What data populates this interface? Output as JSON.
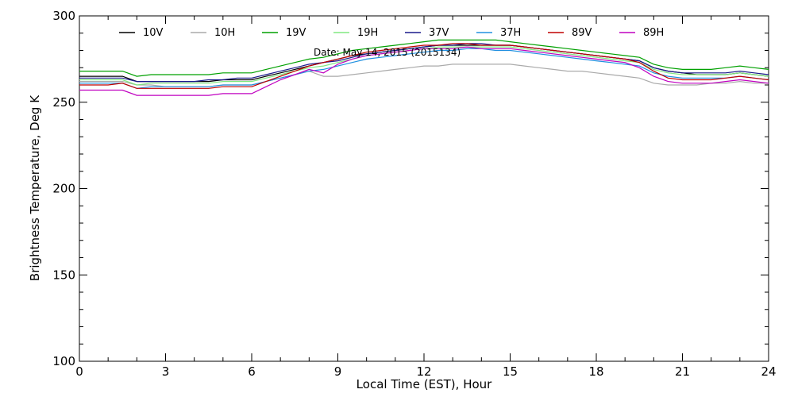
{
  "chart_data": {
    "type": "line",
    "title": "",
    "annotation": "Date: May 14, 2015 (2015134)",
    "xlabel": "Local Time (EST), Hour",
    "ylabel": "Brightness Temperature, Deg K",
    "xlim": [
      0,
      24
    ],
    "ylim": [
      100,
      300
    ],
    "xticks": [
      0,
      3,
      6,
      9,
      12,
      15,
      18,
      21,
      24
    ],
    "yticks": [
      100,
      150,
      200,
      250,
      300
    ],
    "grid": false,
    "legend_placement": "top",
    "x": [
      0,
      0.5,
      1,
      1.5,
      2,
      2.5,
      3,
      3.5,
      4,
      4.5,
      5,
      5.5,
      6,
      6.5,
      7,
      7.5,
      8,
      8.5,
      9,
      9.5,
      10,
      10.5,
      11,
      11.5,
      12,
      12.5,
      13,
      13.5,
      14,
      14.5,
      15,
      15.5,
      16,
      16.5,
      17,
      17.5,
      18,
      18.5,
      19,
      19.5,
      20,
      20.5,
      21,
      21.5,
      22,
      22.5,
      23,
      23.5,
      24
    ],
    "series": [
      {
        "name": "10V",
        "color": "#000000",
        "values": [
          265,
          265,
          265,
          265,
          262,
          262,
          262,
          262,
          262,
          262,
          263,
          263,
          263,
          265,
          267,
          269,
          271,
          273,
          275,
          277,
          278,
          279,
          280,
          281,
          282,
          283,
          283,
          283,
          283,
          283,
          283,
          282,
          281,
          280,
          279,
          278,
          277,
          276,
          275,
          274,
          270,
          268,
          267,
          266,
          266,
          266,
          267,
          266,
          265
        ]
      },
      {
        "name": "10H",
        "color": "#aaaaaa",
        "values": [
          262,
          262,
          262,
          262,
          260,
          260,
          259,
          259,
          259,
          259,
          260,
          260,
          260,
          262,
          264,
          266,
          268,
          265,
          265,
          266,
          267,
          268,
          269,
          270,
          271,
          271,
          272,
          272,
          272,
          272,
          272,
          271,
          270,
          269,
          268,
          268,
          267,
          266,
          265,
          264,
          261,
          260,
          260,
          260,
          261,
          261,
          262,
          261,
          261
        ]
      },
      {
        "name": "19V",
        "color": "#00a000",
        "values": [
          268,
          268,
          268,
          268,
          265,
          266,
          266,
          266,
          266,
          266,
          267,
          267,
          267,
          269,
          271,
          273,
          275,
          276,
          278,
          280,
          281,
          282,
          283,
          284,
          285,
          286,
          286,
          286,
          286,
          286,
          285,
          284,
          283,
          282,
          281,
          280,
          279,
          278,
          277,
          276,
          272,
          270,
          269,
          269,
          269,
          270,
          271,
          270,
          269
        ]
      },
      {
        "name": "19H",
        "color": "#80e880",
        "values": [
          263,
          263,
          263,
          263,
          260,
          261,
          261,
          261,
          261,
          261,
          262,
          262,
          262,
          264,
          266,
          268,
          270,
          271,
          273,
          275,
          277,
          278,
          279,
          280,
          281,
          282,
          282,
          282,
          282,
          282,
          282,
          281,
          280,
          279,
          278,
          277,
          276,
          275,
          274,
          273,
          269,
          267,
          266,
          266,
          266,
          266,
          267,
          266,
          265
        ]
      },
      {
        "name": "37V",
        "color": "#1a1a8c",
        "values": [
          264,
          264,
          264,
          264,
          262,
          262,
          262,
          262,
          262,
          263,
          263,
          264,
          264,
          266,
          268,
          270,
          272,
          273,
          274,
          276,
          278,
          279,
          280,
          281,
          282,
          283,
          283,
          284,
          284,
          283,
          283,
          282,
          281,
          280,
          279,
          278,
          277,
          276,
          275,
          274,
          270,
          268,
          267,
          267,
          267,
          267,
          268,
          267,
          266
        ]
      },
      {
        "name": "37H",
        "color": "#2090e0",
        "values": [
          261,
          261,
          261,
          261,
          258,
          259,
          259,
          259,
          259,
          259,
          260,
          260,
          260,
          262,
          264,
          266,
          268,
          269,
          271,
          273,
          275,
          276,
          277,
          278,
          279,
          280,
          280,
          281,
          281,
          280,
          280,
          279,
          278,
          277,
          276,
          275,
          274,
          273,
          272,
          271,
          267,
          265,
          264,
          264,
          264,
          264,
          265,
          264,
          263
        ]
      },
      {
        "name": "89V",
        "color": "#c00000",
        "values": [
          260,
          260,
          260,
          261,
          258,
          258,
          258,
          258,
          258,
          258,
          259,
          259,
          259,
          262,
          265,
          268,
          271,
          273,
          275,
          277,
          279,
          280,
          281,
          282,
          283,
          283,
          284,
          284,
          283,
          283,
          283,
          282,
          281,
          280,
          279,
          278,
          277,
          276,
          275,
          273,
          268,
          264,
          263,
          263,
          263,
          264,
          265,
          264,
          263
        ]
      },
      {
        "name": "89H",
        "color": "#c000c0",
        "values": [
          257,
          257,
          257,
          257,
          254,
          254,
          254,
          254,
          254,
          254,
          255,
          255,
          255,
          259,
          263,
          266,
          269,
          267,
          272,
          275,
          277,
          278,
          279,
          280,
          281,
          281,
          281,
          282,
          281,
          281,
          281,
          280,
          279,
          278,
          277,
          276,
          275,
          274,
          273,
          270,
          265,
          262,
          261,
          261,
          261,
          262,
          263,
          262,
          261
        ]
      }
    ]
  }
}
